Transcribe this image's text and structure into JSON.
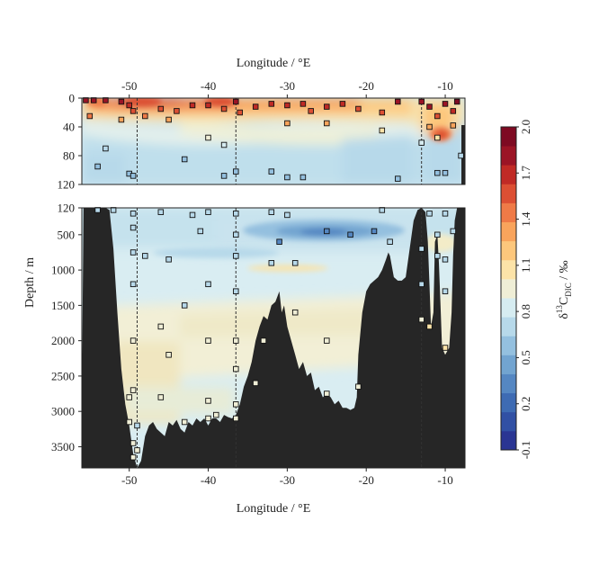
{
  "chart_data": {
    "type": "heatmap",
    "title": "",
    "top_axis_label": "Longitude / °E",
    "xlabel": "Longitude / °E",
    "ylabel": "Depth / m",
    "x_ticks": [
      -50,
      -40,
      -30,
      -20,
      -10
    ],
    "xlim": [
      -56,
      -7.5
    ],
    "upper_panel": {
      "ylim": [
        0,
        120
      ],
      "y_ticks": [
        0,
        40,
        80,
        120
      ]
    },
    "lower_panel": {
      "ylim": [
        120,
        3800
      ],
      "y_ticks": [
        120,
        500,
        1000,
        1500,
        2000,
        2500,
        3000,
        3500
      ]
    },
    "colorbar": {
      "label_main": "δ",
      "label_super": "13",
      "label_base": "C",
      "label_sub": "DIC",
      "label_unit": " / ‰",
      "range": [
        -0.1,
        2.0
      ],
      "ticks": [
        -0.1,
        0.2,
        0.5,
        0.8,
        1.1,
        1.4,
        1.7,
        2.0
      ],
      "colors": [
        "#2a3593",
        "#3150a4",
        "#3e6bb3",
        "#5587c2",
        "#72a4d0",
        "#94c0df",
        "#b7d9ea",
        "#d6ecf1",
        "#efeed6",
        "#fce3a8",
        "#fdc77c",
        "#f9a45c",
        "#ef7a47",
        "#dc4f33",
        "#c02a25",
        "#9b1425",
        "#7e0a22"
      ]
    },
    "station_lines": [
      -49,
      -36.5,
      -13
    ],
    "field_description": "surface values 1.4–1.9 ‰ near 0–30 m, decreasing to ~0.6–0.8 ‰ at depth; minimum ~0.2 ‰ near -25 °E at 500 m",
    "samples": [
      {
        "lon": -55.5,
        "depth": 3
      },
      {
        "lon": -54.5,
        "depth": 3
      },
      {
        "lon": -53,
        "depth": 3
      },
      {
        "lon": -51,
        "depth": 5
      },
      {
        "lon": -50,
        "depth": 10
      },
      {
        "lon": -49.5,
        "depth": 18
      },
      {
        "lon": -48,
        "depth": 25
      },
      {
        "lon": -46,
        "depth": 15
      },
      {
        "lon": -44,
        "depth": 18
      },
      {
        "lon": -42,
        "depth": 10
      },
      {
        "lon": -40,
        "depth": 10
      },
      {
        "lon": -38,
        "depth": 15
      },
      {
        "lon": -36.5,
        "depth": 5
      },
      {
        "lon": -36,
        "depth": 20
      },
      {
        "lon": -34,
        "depth": 12
      },
      {
        "lon": -32,
        "depth": 8
      },
      {
        "lon": -30,
        "depth": 10
      },
      {
        "lon": -28,
        "depth": 8
      },
      {
        "lon": -27,
        "depth": 18
      },
      {
        "lon": -25,
        "depth": 12
      },
      {
        "lon": -23,
        "depth": 8
      },
      {
        "lon": -21,
        "depth": 15
      },
      {
        "lon": -18,
        "depth": 20
      },
      {
        "lon": -16,
        "depth": 5
      },
      {
        "lon": -13,
        "depth": 5
      },
      {
        "lon": -12,
        "depth": 12
      },
      {
        "lon": -11,
        "depth": 25
      },
      {
        "lon": -10,
        "depth": 8
      },
      {
        "lon": -9,
        "depth": 18
      },
      {
        "lon": -8.5,
        "depth": 5
      },
      {
        "lon": -55,
        "depth": 25
      },
      {
        "lon": -51,
        "depth": 30
      },
      {
        "lon": -45,
        "depth": 30
      },
      {
        "lon": -40,
        "depth": 55
      },
      {
        "lon": -38,
        "depth": 65
      },
      {
        "lon": -30,
        "depth": 35
      },
      {
        "lon": -25,
        "depth": 35
      },
      {
        "lon": -18,
        "depth": 45
      },
      {
        "lon": -12,
        "depth": 40
      },
      {
        "lon": -11,
        "depth": 55
      },
      {
        "lon": -9,
        "depth": 38
      },
      {
        "lon": -53,
        "depth": 70
      },
      {
        "lon": -43,
        "depth": 85
      },
      {
        "lon": -13,
        "depth": 62
      },
      {
        "lon": -8,
        "depth": 80
      },
      {
        "lon": -54,
        "depth": 95
      },
      {
        "lon": -50,
        "depth": 105
      },
      {
        "lon": -49.5,
        "depth": 108
      },
      {
        "lon": -38,
        "depth": 108
      },
      {
        "lon": -36.5,
        "depth": 102
      },
      {
        "lon": -32,
        "depth": 102
      },
      {
        "lon": -30,
        "depth": 110
      },
      {
        "lon": -28,
        "depth": 110
      },
      {
        "lon": -16,
        "depth": 112
      },
      {
        "lon": -11,
        "depth": 104
      },
      {
        "lon": -10,
        "depth": 104
      },
      {
        "lon": -54,
        "depth": 150
      },
      {
        "lon": -52,
        "depth": 150
      },
      {
        "lon": -49.5,
        "depth": 200
      },
      {
        "lon": -46,
        "depth": 180
      },
      {
        "lon": -42,
        "depth": 220
      },
      {
        "lon": -40,
        "depth": 180
      },
      {
        "lon": -36.5,
        "depth": 200
      },
      {
        "lon": -32,
        "depth": 180
      },
      {
        "lon": -30,
        "depth": 220
      },
      {
        "lon": -18,
        "depth": 150
      },
      {
        "lon": -12,
        "depth": 200
      },
      {
        "lon": -10,
        "depth": 200
      },
      {
        "lon": -49.5,
        "depth": 400
      },
      {
        "lon": -41,
        "depth": 450
      },
      {
        "lon": -36.5,
        "depth": 500
      },
      {
        "lon": -31,
        "depth": 600
      },
      {
        "lon": -25,
        "depth": 450
      },
      {
        "lon": -22,
        "depth": 500
      },
      {
        "lon": -19,
        "depth": 450
      },
      {
        "lon": -17,
        "depth": 600
      },
      {
        "lon": -11,
        "depth": 500
      },
      {
        "lon": -9,
        "depth": 450
      },
      {
        "lon": -49.5,
        "depth": 750
      },
      {
        "lon": -48,
        "depth": 800
      },
      {
        "lon": -45,
        "depth": 850
      },
      {
        "lon": -36.5,
        "depth": 800
      },
      {
        "lon": -32,
        "depth": 900
      },
      {
        "lon": -29,
        "depth": 900
      },
      {
        "lon": -13,
        "depth": 700
      },
      {
        "lon": -11,
        "depth": 800
      },
      {
        "lon": -10,
        "depth": 850
      },
      {
        "lon": -49.5,
        "depth": 1200
      },
      {
        "lon": -40,
        "depth": 1200
      },
      {
        "lon": -36.5,
        "depth": 1300
      },
      {
        "lon": -13,
        "depth": 1200
      },
      {
        "lon": -10,
        "depth": 1300
      },
      {
        "lon": -43,
        "depth": 1500
      },
      {
        "lon": -29,
        "depth": 1600
      },
      {
        "lon": -13,
        "depth": 1700
      },
      {
        "lon": -12,
        "depth": 1800
      },
      {
        "lon": -46,
        "depth": 1800
      },
      {
        "lon": -49.5,
        "depth": 2000
      },
      {
        "lon": -40,
        "depth": 2000
      },
      {
        "lon": -36.5,
        "depth": 2000
      },
      {
        "lon": -33,
        "depth": 2000
      },
      {
        "lon": -25,
        "depth": 2000
      },
      {
        "lon": -10,
        "depth": 2100
      },
      {
        "lon": -45,
        "depth": 2200
      },
      {
        "lon": -36.5,
        "depth": 2400
      },
      {
        "lon": -34,
        "depth": 2600
      },
      {
        "lon": -21,
        "depth": 2650
      },
      {
        "lon": -50,
        "depth": 2800
      },
      {
        "lon": -49.5,
        "depth": 2700
      },
      {
        "lon": -46,
        "depth": 2800
      },
      {
        "lon": -40,
        "depth": 2850
      },
      {
        "lon": -36.5,
        "depth": 2900
      },
      {
        "lon": -25,
        "depth": 2750
      },
      {
        "lon": -50,
        "depth": 3150
      },
      {
        "lon": -49,
        "depth": 3200
      },
      {
        "lon": -43,
        "depth": 3150
      },
      {
        "lon": -40,
        "depth": 3100
      },
      {
        "lon": -39,
        "depth": 3050
      },
      {
        "lon": -36.5,
        "depth": 3100
      },
      {
        "lon": -49.5,
        "depth": 3450
      },
      {
        "lon": -49,
        "depth": 3550
      },
      {
        "lon": -49.5,
        "depth": 3650
      }
    ]
  }
}
